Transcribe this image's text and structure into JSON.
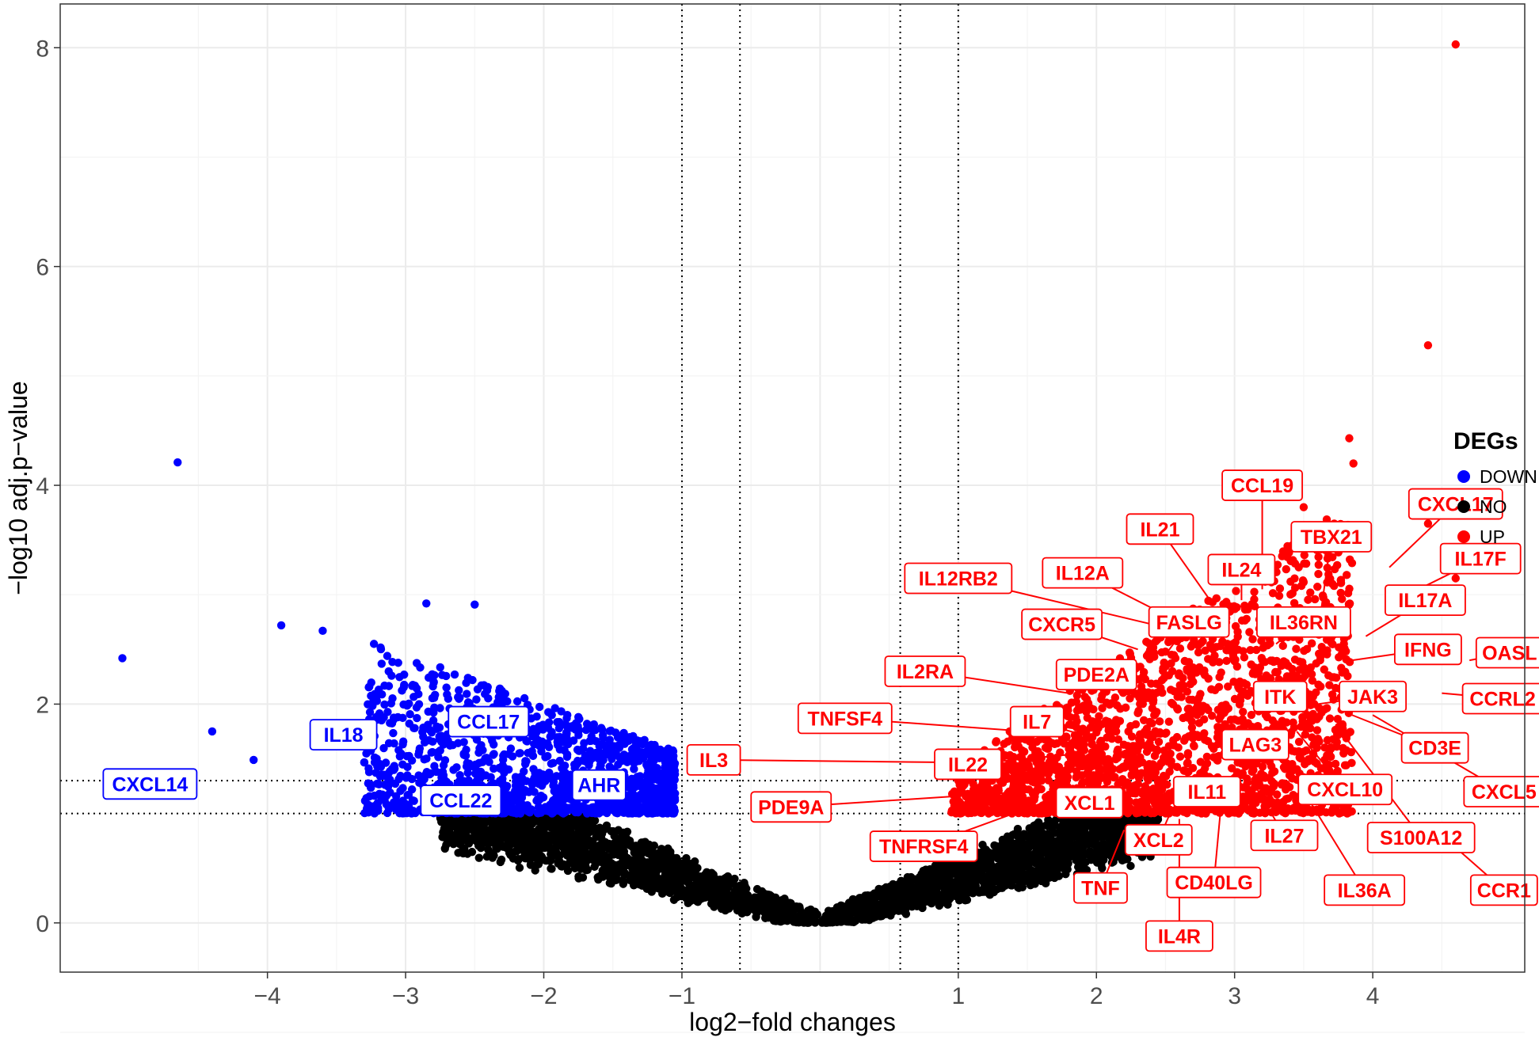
{
  "chart_data": {
    "type": "scatter",
    "xlabel": "log2−fold changes",
    "ylabel": "−log10 adj.p−value",
    "xlim": [
      -5.5,
      5.1
    ],
    "ylim": [
      -0.45,
      8.4
    ],
    "x_ticks": [
      -4,
      -3,
      -2,
      -1,
      1,
      2,
      3,
      4
    ],
    "x_tick_labels": [
      "−4",
      "−3",
      "−2",
      "−1",
      "1",
      "2",
      "3",
      "4"
    ],
    "y_ticks": [
      0,
      2,
      4,
      6,
      8
    ],
    "y_tick_labels": [
      "0",
      "2",
      "4",
      "6",
      "8"
    ],
    "grid": true,
    "vlines": [
      -1,
      -0.58,
      0.58,
      1
    ],
    "hlines": [
      1,
      1.3
    ],
    "legend": {
      "title": "DEGs",
      "position": "right",
      "entries": [
        {
          "label": "DOWN",
          "color": "#0000ff"
        },
        {
          "label": "NO",
          "color": "#000000"
        },
        {
          "label": "UP",
          "color": "#ff0000"
        }
      ]
    },
    "highlight_points": {
      "UP": [
        [
          4.6,
          8.03
        ],
        [
          4.4,
          5.28
        ],
        [
          3.83,
          4.43
        ],
        [
          3.86,
          4.2
        ],
        [
          3.5,
          3.8
        ],
        [
          4.4,
          3.65
        ],
        [
          4.6,
          3.15
        ]
      ],
      "DOWN": [
        [
          -4.65,
          4.21
        ],
        [
          -3.9,
          2.72
        ],
        [
          -2.5,
          2.91
        ],
        [
          -2.85,
          2.92
        ],
        [
          -3.6,
          2.67
        ],
        [
          -5.05,
          2.42
        ],
        [
          -4.4,
          1.75
        ],
        [
          -4.1,
          1.49
        ]
      ]
    },
    "labels": {
      "down": [
        {
          "text": "CXCL14",
          "x": -4.85,
          "y": 1.27
        },
        {
          "text": "IL18",
          "x": -3.45,
          "y": 1.72
        },
        {
          "text": "CCL17",
          "x": -2.4,
          "y": 1.84
        },
        {
          "text": "CCL22",
          "x": -2.6,
          "y": 1.12
        },
        {
          "text": "AHR",
          "x": -1.6,
          "y": 1.26
        }
      ],
      "up": [
        {
          "text": "CCL19",
          "x": 3.2,
          "y": 4.0,
          "px": 3.2,
          "py": 3.05
        },
        {
          "text": "CXCL17",
          "x": 4.6,
          "y": 3.83,
          "px": 4.12,
          "py": 3.25
        },
        {
          "text": "TBX21",
          "x": 3.7,
          "y": 3.53,
          "px": 3.62,
          "py": 2.8
        },
        {
          "text": "IL21",
          "x": 2.46,
          "y": 3.6,
          "px": 2.85,
          "py": 2.9
        },
        {
          "text": "IL17F",
          "x": 4.78,
          "y": 3.33,
          "px": 4.38,
          "py": 3.08
        },
        {
          "text": "IL24",
          "x": 3.05,
          "y": 3.23,
          "px": 3.05,
          "py": 2.95
        },
        {
          "text": "IL12RB2",
          "x": 1.0,
          "y": 3.15,
          "px": 2.5,
          "py": 2.7
        },
        {
          "text": "IL12A",
          "x": 1.9,
          "y": 3.2,
          "px": 2.6,
          "py": 2.75
        },
        {
          "text": "IL17A",
          "x": 4.38,
          "y": 2.95,
          "px": 3.95,
          "py": 2.62
        },
        {
          "text": "FASLG",
          "x": 2.67,
          "y": 2.75,
          "px": 2.5,
          "py": 2.45
        },
        {
          "text": "IL36RN",
          "x": 3.5,
          "y": 2.75,
          "px": 3.3,
          "py": 2.55
        },
        {
          "text": "CXCR5",
          "x": 1.75,
          "y": 2.73,
          "px": 2.3,
          "py": 2.5
        },
        {
          "text": "IFNG",
          "x": 4.4,
          "y": 2.5,
          "px": 3.85,
          "py": 2.4
        },
        {
          "text": "OASL",
          "x": 4.99,
          "y": 2.47,
          "px": 4.7,
          "py": 2.4
        },
        {
          "text": "IL2RA",
          "x": 0.76,
          "y": 2.3,
          "px": 1.8,
          "py": 2.1
        },
        {
          "text": "PDE2A",
          "x": 2.0,
          "y": 2.27,
          "px": 2.35,
          "py": 2.05
        },
        {
          "text": "ITK",
          "x": 3.33,
          "y": 2.07,
          "px": 3.1,
          "py": 1.9
        },
        {
          "text": "JAK3",
          "x": 4.0,
          "y": 2.07,
          "px": 3.6,
          "py": 2.0
        },
        {
          "text": "CCRL2",
          "x": 4.94,
          "y": 2.05,
          "px": 4.5,
          "py": 2.1
        },
        {
          "text": "TNFSF4",
          "x": 0.18,
          "y": 1.87,
          "px": 1.5,
          "py": 1.75
        },
        {
          "text": "IL7",
          "x": 1.57,
          "y": 1.84,
          "px": 1.95,
          "py": 1.7
        },
        {
          "text": "CD3E",
          "x": 4.45,
          "y": 1.6,
          "px": 3.85,
          "py": 1.9
        },
        {
          "text": "LAG3",
          "x": 3.15,
          "y": 1.63,
          "px": 2.95,
          "py": 1.5
        },
        {
          "text": "IL3",
          "x": -0.77,
          "y": 1.49,
          "px": 1.5,
          "py": 1.46
        },
        {
          "text": "IL22",
          "x": 1.07,
          "y": 1.45,
          "px": 1.9,
          "py": 1.55
        },
        {
          "text": "CXCL10",
          "x": 3.8,
          "y": 1.22,
          "px": 3.45,
          "py": 1.75
        },
        {
          "text": "CXCL5",
          "x": 4.95,
          "y": 1.2,
          "px": 4.0,
          "py": 1.9
        },
        {
          "text": "IL11",
          "x": 2.8,
          "y": 1.2,
          "px": 2.6,
          "py": 1.4
        },
        {
          "text": "PDE9A",
          "x": -0.21,
          "y": 1.06,
          "px": 1.5,
          "py": 1.2
        },
        {
          "text": "XCL1",
          "x": 1.95,
          "y": 1.1,
          "px": 2.3,
          "py": 1.3
        },
        {
          "text": "IL27",
          "x": 3.36,
          "y": 0.8,
          "px": 3.15,
          "py": 1.25
        },
        {
          "text": "S100A12",
          "x": 4.35,
          "y": 0.78,
          "px": 3.8,
          "py": 1.7
        },
        {
          "text": "TNFRSF4",
          "x": 0.75,
          "y": 0.7,
          "px": 2.05,
          "py": 1.3
        },
        {
          "text": "XCL2",
          "x": 2.45,
          "y": 0.76,
          "px": 2.55,
          "py": 1.05
        },
        {
          "text": "CCR1",
          "x": 4.95,
          "y": 0.3,
          "px": 4.5,
          "py": 0.8
        },
        {
          "text": "TNF",
          "x": 2.03,
          "y": 0.32,
          "px": 2.2,
          "py": 0.85
        },
        {
          "text": "CD40LG",
          "x": 2.85,
          "y": 0.37,
          "px": 2.9,
          "py": 1.05
        },
        {
          "text": "IL36A",
          "x": 3.94,
          "y": 0.3,
          "px": 3.55,
          "py": 1.1
        },
        {
          "text": "IL4R",
          "x": 2.6,
          "y": -0.12,
          "px": 2.6,
          "py": 0.95
        }
      ]
    }
  },
  "colors": {
    "up": "#ff0000",
    "down": "#0000ff",
    "no": "#000000",
    "grid_major": "#ebebeb",
    "grid_minor": "#f4f4f4",
    "panel_border": "#333333"
  }
}
